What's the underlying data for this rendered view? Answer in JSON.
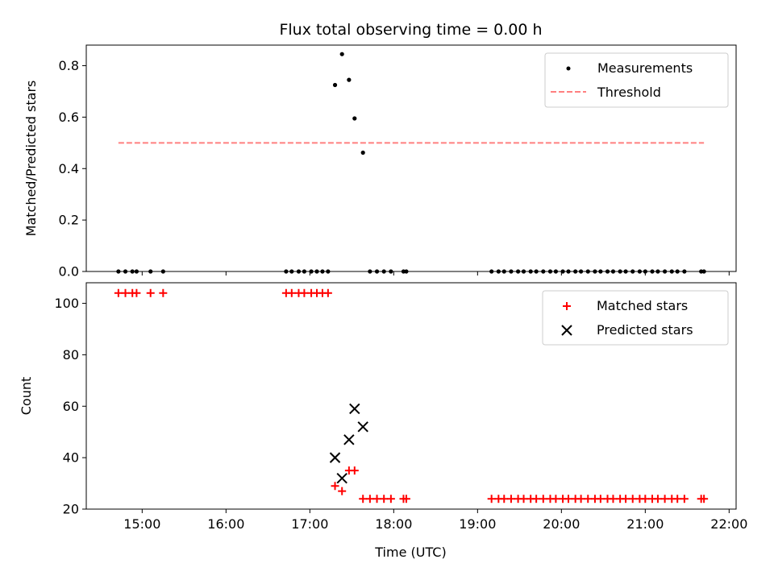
{
  "chart_data": [
    {
      "type": "scatter",
      "title": "Flux total observing time = 0.00 h",
      "xlabel": "",
      "ylabel": "Matched/Predicted stars",
      "xlim": [
        "14:20",
        "22:05"
      ],
      "ylim": [
        0,
        0.88
      ],
      "y_ticks": [
        "0.0",
        "0.2",
        "0.4",
        "0.6",
        "0.8"
      ],
      "grid": false,
      "legend_position": "top-right",
      "series": [
        {
          "name": "Measurements",
          "kind": "points",
          "color": "#000000",
          "points": [
            {
              "x": "14:43",
              "y": 0
            },
            {
              "x": "14:48",
              "y": 0
            },
            {
              "x": "14:53",
              "y": 0
            },
            {
              "x": "14:56",
              "y": 0
            },
            {
              "x": "15:06",
              "y": 0
            },
            {
              "x": "15:15",
              "y": 0
            },
            {
              "x": "16:43",
              "y": 0
            },
            {
              "x": "16:47",
              "y": 0
            },
            {
              "x": "16:52",
              "y": 0
            },
            {
              "x": "16:56",
              "y": 0
            },
            {
              "x": "17:01",
              "y": 0
            },
            {
              "x": "17:05",
              "y": 0
            },
            {
              "x": "17:09",
              "y": 0
            },
            {
              "x": "17:13",
              "y": 0
            },
            {
              "x": "17:18",
              "y": 0.725
            },
            {
              "x": "17:23",
              "y": 0.845
            },
            {
              "x": "17:28",
              "y": 0.745
            },
            {
              "x": "17:32",
              "y": 0.595
            },
            {
              "x": "17:38",
              "y": 0.462
            },
            {
              "x": "17:43",
              "y": 0
            },
            {
              "x": "17:48",
              "y": 0
            },
            {
              "x": "17:53",
              "y": 0
            },
            {
              "x": "17:58",
              "y": 0
            },
            {
              "x": "18:07",
              "y": 0
            },
            {
              "x": "18:09",
              "y": 0
            },
            {
              "x": "19:10",
              "y": 0
            },
            {
              "x": "19:15",
              "y": 0
            },
            {
              "x": "19:19",
              "y": 0
            },
            {
              "x": "19:24",
              "y": 0
            },
            {
              "x": "19:29",
              "y": 0
            },
            {
              "x": "19:33",
              "y": 0
            },
            {
              "x": "19:38",
              "y": 0
            },
            {
              "x": "19:42",
              "y": 0
            },
            {
              "x": "19:47",
              "y": 0
            },
            {
              "x": "19:52",
              "y": 0
            },
            {
              "x": "19:56",
              "y": 0
            },
            {
              "x": "20:01",
              "y": 0
            },
            {
              "x": "20:05",
              "y": 0
            },
            {
              "x": "20:10",
              "y": 0
            },
            {
              "x": "20:14",
              "y": 0
            },
            {
              "x": "20:19",
              "y": 0
            },
            {
              "x": "20:24",
              "y": 0
            },
            {
              "x": "20:28",
              "y": 0
            },
            {
              "x": "20:33",
              "y": 0
            },
            {
              "x": "20:37",
              "y": 0
            },
            {
              "x": "20:42",
              "y": 0
            },
            {
              "x": "20:46",
              "y": 0
            },
            {
              "x": "20:51",
              "y": 0
            },
            {
              "x": "20:56",
              "y": 0
            },
            {
              "x": "21:00",
              "y": 0
            },
            {
              "x": "21:05",
              "y": 0
            },
            {
              "x": "21:09",
              "y": 0
            },
            {
              "x": "21:14",
              "y": 0
            },
            {
              "x": "21:19",
              "y": 0
            },
            {
              "x": "21:23",
              "y": 0
            },
            {
              "x": "21:28",
              "y": 0
            },
            {
              "x": "21:40",
              "y": 0
            },
            {
              "x": "21:42",
              "y": 0
            }
          ]
        },
        {
          "name": "Threshold",
          "kind": "dashed-line",
          "color": "#ff7f7f",
          "points": [
            {
              "x": "14:43",
              "y": 0.5
            },
            {
              "x": "21:42",
              "y": 0.5
            }
          ]
        }
      ]
    },
    {
      "type": "scatter",
      "title": "",
      "xlabel": "Time (UTC)",
      "ylabel": "Count",
      "xlim": [
        "14:20",
        "22:05"
      ],
      "ylim": [
        20,
        108
      ],
      "x_ticks": [
        "15:00",
        "16:00",
        "17:00",
        "18:00",
        "19:00",
        "20:00",
        "21:00",
        "22:00"
      ],
      "y_ticks": [
        "20",
        "40",
        "60",
        "80",
        "100"
      ],
      "grid": false,
      "legend_position": "top-right",
      "series": [
        {
          "name": "Matched stars",
          "marker": "plus",
          "color": "#ff0000",
          "points": [
            {
              "x": "14:43",
              "y": 104
            },
            {
              "x": "14:48",
              "y": 104
            },
            {
              "x": "14:53",
              "y": 104
            },
            {
              "x": "14:56",
              "y": 104
            },
            {
              "x": "15:06",
              "y": 104
            },
            {
              "x": "15:15",
              "y": 104
            },
            {
              "x": "16:43",
              "y": 104
            },
            {
              "x": "16:47",
              "y": 104
            },
            {
              "x": "16:52",
              "y": 104
            },
            {
              "x": "16:56",
              "y": 104
            },
            {
              "x": "17:01",
              "y": 104
            },
            {
              "x": "17:05",
              "y": 104
            },
            {
              "x": "17:09",
              "y": 104
            },
            {
              "x": "17:13",
              "y": 104
            },
            {
              "x": "17:18",
              "y": 29
            },
            {
              "x": "17:23",
              "y": 27
            },
            {
              "x": "17:28",
              "y": 35
            },
            {
              "x": "17:32",
              "y": 35
            },
            {
              "x": "17:38",
              "y": 24
            },
            {
              "x": "17:43",
              "y": 24
            },
            {
              "x": "17:48",
              "y": 24
            },
            {
              "x": "17:53",
              "y": 24
            },
            {
              "x": "17:58",
              "y": 24
            },
            {
              "x": "18:07",
              "y": 24
            },
            {
              "x": "18:09",
              "y": 24
            },
            {
              "x": "19:10",
              "y": 24
            },
            {
              "x": "19:15",
              "y": 24
            },
            {
              "x": "19:19",
              "y": 24
            },
            {
              "x": "19:24",
              "y": 24
            },
            {
              "x": "19:29",
              "y": 24
            },
            {
              "x": "19:33",
              "y": 24
            },
            {
              "x": "19:38",
              "y": 24
            },
            {
              "x": "19:42",
              "y": 24
            },
            {
              "x": "19:47",
              "y": 24
            },
            {
              "x": "19:52",
              "y": 24
            },
            {
              "x": "19:56",
              "y": 24
            },
            {
              "x": "20:01",
              "y": 24
            },
            {
              "x": "20:05",
              "y": 24
            },
            {
              "x": "20:10",
              "y": 24
            },
            {
              "x": "20:14",
              "y": 24
            },
            {
              "x": "20:19",
              "y": 24
            },
            {
              "x": "20:24",
              "y": 24
            },
            {
              "x": "20:28",
              "y": 24
            },
            {
              "x": "20:33",
              "y": 24
            },
            {
              "x": "20:37",
              "y": 24
            },
            {
              "x": "20:42",
              "y": 24
            },
            {
              "x": "20:46",
              "y": 24
            },
            {
              "x": "20:51",
              "y": 24
            },
            {
              "x": "20:56",
              "y": 24
            },
            {
              "x": "21:00",
              "y": 24
            },
            {
              "x": "21:05",
              "y": 24
            },
            {
              "x": "21:09",
              "y": 24
            },
            {
              "x": "21:14",
              "y": 24
            },
            {
              "x": "21:19",
              "y": 24
            },
            {
              "x": "21:23",
              "y": 24
            },
            {
              "x": "21:28",
              "y": 24
            },
            {
              "x": "21:40",
              "y": 24
            },
            {
              "x": "21:42",
              "y": 24
            }
          ]
        },
        {
          "name": "Predicted stars",
          "marker": "x",
          "color": "#000000",
          "points": [
            {
              "x": "17:18",
              "y": 40
            },
            {
              "x": "17:23",
              "y": 32
            },
            {
              "x": "17:28",
              "y": 47
            },
            {
              "x": "17:32",
              "y": 59
            },
            {
              "x": "17:38",
              "y": 52
            }
          ]
        }
      ]
    }
  ]
}
